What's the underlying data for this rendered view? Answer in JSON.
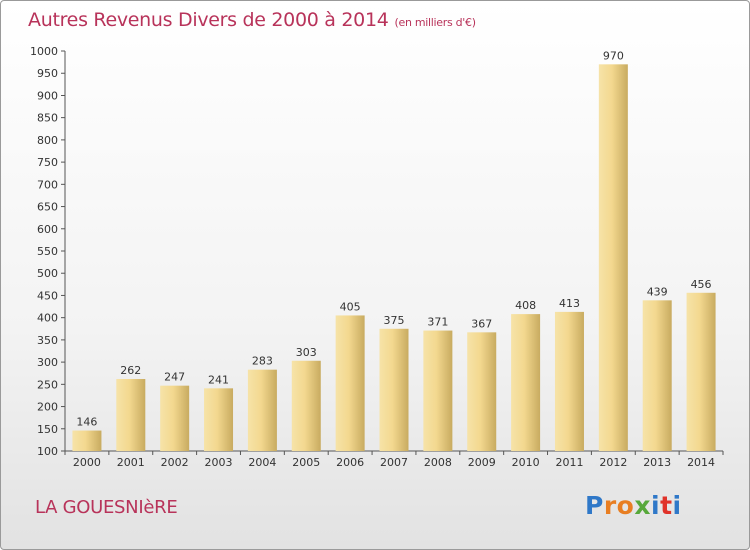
{
  "header": {
    "title": "Autres Revenus Divers de 2000 à 2014",
    "unit": "(en milliers d'€)"
  },
  "footer": {
    "commune": "LA GOUESNIèRE",
    "logo": "Proxiti"
  },
  "colors": {
    "title": "#b8335a",
    "bar_light": "#f6e3a8",
    "bar_dark": "#c8ab60"
  },
  "chart_data": {
    "type": "bar",
    "categories": [
      "2000",
      "2001",
      "2002",
      "2003",
      "2004",
      "2005",
      "2006",
      "2007",
      "2008",
      "2009",
      "2010",
      "2011",
      "2012",
      "2013",
      "2014"
    ],
    "values": [
      146,
      262,
      247,
      241,
      283,
      303,
      405,
      375,
      371,
      367,
      408,
      413,
      970,
      439,
      456
    ],
    "title": "Autres Revenus Divers de 2000 à 2014",
    "subtitle": "(en milliers d'€)",
    "xlabel": "",
    "ylabel": "",
    "ylim": [
      100,
      1000
    ],
    "yticks": [
      100,
      150,
      200,
      250,
      300,
      350,
      400,
      450,
      500,
      550,
      600,
      650,
      700,
      750,
      800,
      850,
      900,
      950,
      1000
    ],
    "grid": false,
    "legend": "none"
  }
}
